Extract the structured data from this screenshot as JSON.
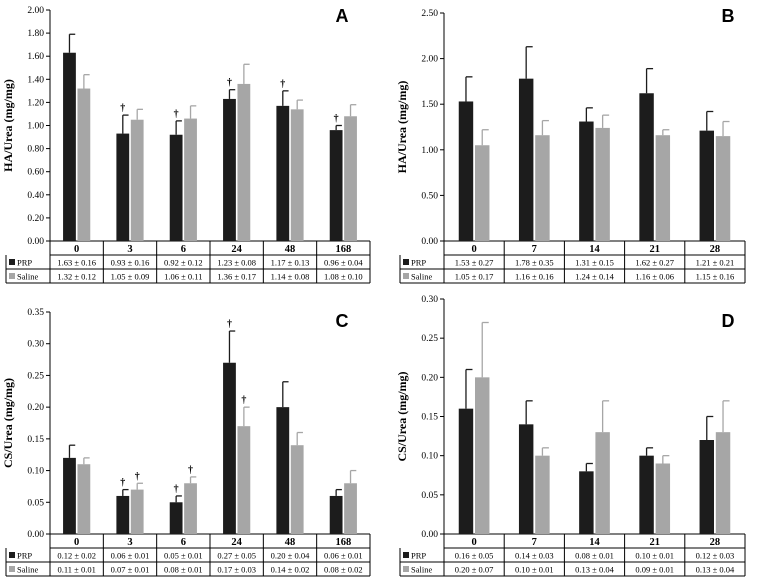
{
  "colors": {
    "prp": "#1c1c1c",
    "saline": "#a6a6a6",
    "axis": "#000000"
  },
  "chart_data": [
    {
      "panel": "A",
      "type": "bar",
      "ylabel": "HA/Urea (mg/mg)",
      "ylim": [
        0,
        2.0
      ],
      "yticks": [
        "0.00",
        "0.20",
        "0.40",
        "0.60",
        "0.80",
        "1.00",
        "1.20",
        "1.40",
        "1.60",
        "1.80",
        "2.00"
      ],
      "ystep": 0.2,
      "categories": [
        "0",
        "3",
        "6",
        "24",
        "48",
        "168"
      ],
      "series": [
        {
          "name": "PRP",
          "values": [
            1.63,
            0.93,
            0.92,
            1.23,
            1.17,
            0.96
          ],
          "errors": [
            0.16,
            0.16,
            0.12,
            0.08,
            0.13,
            0.04
          ],
          "markers": [
            "",
            "†",
            "†",
            "†",
            "†",
            "†"
          ]
        },
        {
          "name": "Saline",
          "values": [
            1.32,
            1.05,
            1.06,
            1.36,
            1.14,
            1.08
          ],
          "errors": [
            0.12,
            0.09,
            0.11,
            0.17,
            0.08,
            0.1
          ],
          "markers": [
            "",
            "",
            "",
            "",
            "",
            ""
          ]
        }
      ],
      "table": {
        "PRP": [
          "1.63 ± 0.16",
          "0.93 ± 0.16",
          "0.92 ± 0.12",
          "1.23 ± 0.08",
          "1.17 ± 0.13",
          "0.96 ± 0.04"
        ],
        "Saline": [
          "1.32 ± 0.12",
          "1.05 ± 0.09",
          "1.06 ± 0.11",
          "1.36 ± 0.17",
          "1.14 ± 0.08",
          "1.08 ± 0.10"
        ]
      }
    },
    {
      "panel": "B",
      "type": "bar",
      "ylabel": "HA/Urea (mg/mg)",
      "ylim": [
        0,
        2.5
      ],
      "yticks": [
        "0.00",
        "0.50",
        "1.00",
        "1.50",
        "2.00",
        "2.50"
      ],
      "ystep": 0.5,
      "categories": [
        "0",
        "7",
        "14",
        "21",
        "28"
      ],
      "series": [
        {
          "name": "PRP",
          "values": [
            1.53,
            1.78,
            1.31,
            1.62,
            1.21
          ],
          "errors": [
            0.27,
            0.35,
            0.15,
            0.27,
            0.21
          ],
          "markers": [
            "",
            "",
            "",
            "",
            ""
          ]
        },
        {
          "name": "Saline",
          "values": [
            1.05,
            1.16,
            1.24,
            1.16,
            1.15
          ],
          "errors": [
            0.17,
            0.16,
            0.14,
            0.06,
            0.16
          ],
          "markers": [
            "",
            "",
            "",
            "",
            ""
          ]
        }
      ],
      "table": {
        "PRP": [
          "1.53 ± 0.27",
          "1.78 ± 0.35",
          "1.31 ± 0.15",
          "1.62 ± 0.27",
          "1.21 ± 0.21"
        ],
        "Saline": [
          "1.05 ± 0.17",
          "1.16 ± 0.16",
          "1.24 ± 0.14",
          "1.16 ± 0.06",
          "1.15 ± 0.16"
        ]
      }
    },
    {
      "panel": "C",
      "type": "bar",
      "ylabel": "CS/Urea (mg/mg)",
      "ylim": [
        0,
        0.35
      ],
      "yticks": [
        "0.00",
        "0.05",
        "0.10",
        "0.15",
        "0.20",
        "0.25",
        "0.30",
        "0.35"
      ],
      "ystep": 0.05,
      "categories": [
        "0",
        "3",
        "6",
        "24",
        "48",
        "168"
      ],
      "series": [
        {
          "name": "PRP",
          "values": [
            0.12,
            0.06,
            0.05,
            0.27,
            0.2,
            0.06
          ],
          "errors": [
            0.02,
            0.01,
            0.01,
            0.05,
            0.04,
            0.01
          ],
          "markers": [
            "",
            "†",
            "†",
            "†",
            "",
            ""
          ]
        },
        {
          "name": "Saline",
          "values": [
            0.11,
            0.07,
            0.08,
            0.17,
            0.14,
            0.08
          ],
          "errors": [
            0.01,
            0.01,
            0.01,
            0.03,
            0.02,
            0.02
          ],
          "markers": [
            "",
            "†",
            "†",
            "†",
            "",
            ""
          ]
        }
      ],
      "table": {
        "PRP": [
          "0.12 ± 0.02",
          "0.06 ± 0.01",
          "0.05 ± 0.01",
          "0.27 ± 0.05",
          "0.20 ± 0.04",
          "0.06 ± 0.01"
        ],
        "Saline": [
          "0.11 ± 0.01",
          "0.07 ± 0.01",
          "0.08 ± 0.01",
          "0.17 ± 0.03",
          "0.14 ± 0.02",
          "0.08 ± 0.02"
        ]
      }
    },
    {
      "panel": "D",
      "type": "bar",
      "ylabel": "CS/Urea (mg/mg)",
      "ylim": [
        0,
        0.3
      ],
      "yticks": [
        "0.00",
        "0.05",
        "0.10",
        "0.15",
        "0.20",
        "0.25",
        "0.30"
      ],
      "ystep": 0.05,
      "categories": [
        "0",
        "7",
        "14",
        "21",
        "28"
      ],
      "series": [
        {
          "name": "PRP",
          "values": [
            0.16,
            0.14,
            0.08,
            0.1,
            0.12
          ],
          "errors": [
            0.05,
            0.03,
            0.01,
            0.01,
            0.03
          ],
          "markers": [
            "",
            "",
            "",
            "",
            ""
          ]
        },
        {
          "name": "Saline",
          "values": [
            0.2,
            0.1,
            0.13,
            0.09,
            0.13
          ],
          "errors": [
            0.07,
            0.01,
            0.04,
            0.01,
            0.04
          ],
          "markers": [
            "",
            "",
            "",
            "",
            ""
          ]
        }
      ],
      "table": {
        "PRP": [
          "0.16 ± 0.05",
          "0.14 ± 0.03",
          "0.08 ± 0.01",
          "0.10 ± 0.01",
          "0.12 ± 0.03"
        ],
        "Saline": [
          "0.20 ± 0.07",
          "0.10 ± 0.01",
          "0.13 ± 0.04",
          "0.09 ± 0.01",
          "0.13 ± 0.04"
        ]
      }
    }
  ]
}
